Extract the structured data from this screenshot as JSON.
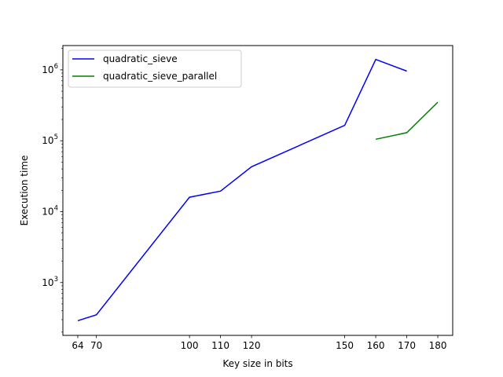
{
  "chart_data": {
    "type": "line",
    "xlabel": "Key size in bits",
    "ylabel": "Execution time",
    "yscale": "log",
    "xlim": [
      59.2,
      184.8
    ],
    "ylim": [
      180,
      2200000
    ],
    "x_ticks": [
      64,
      70,
      100,
      110,
      120,
      150,
      160,
      170,
      180
    ],
    "y_ticks": [
      {
        "value": 1000,
        "exp": "3"
      },
      {
        "value": 10000,
        "exp": "4"
      },
      {
        "value": 100000,
        "exp": "5"
      },
      {
        "value": 1000000,
        "exp": "6"
      }
    ],
    "legend_position": "upper-left",
    "grid": false,
    "series": [
      {
        "name": "quadratic_sieve",
        "color": "#0000ff",
        "points": [
          {
            "x": 64,
            "y": 290
          },
          {
            "x": 70,
            "y": 350
          },
          {
            "x": 100,
            "y": 16000
          },
          {
            "x": 110,
            "y": 19500
          },
          {
            "x": 120,
            "y": 43000
          },
          {
            "x": 150,
            "y": 165000
          },
          {
            "x": 160,
            "y": 1400000
          },
          {
            "x": 170,
            "y": 960000
          }
        ]
      },
      {
        "name": "quadratic_sieve_parallel",
        "color": "#008000",
        "points": [
          {
            "x": 160,
            "y": 105000
          },
          {
            "x": 170,
            "y": 130000
          },
          {
            "x": 180,
            "y": 350000
          }
        ]
      }
    ]
  }
}
